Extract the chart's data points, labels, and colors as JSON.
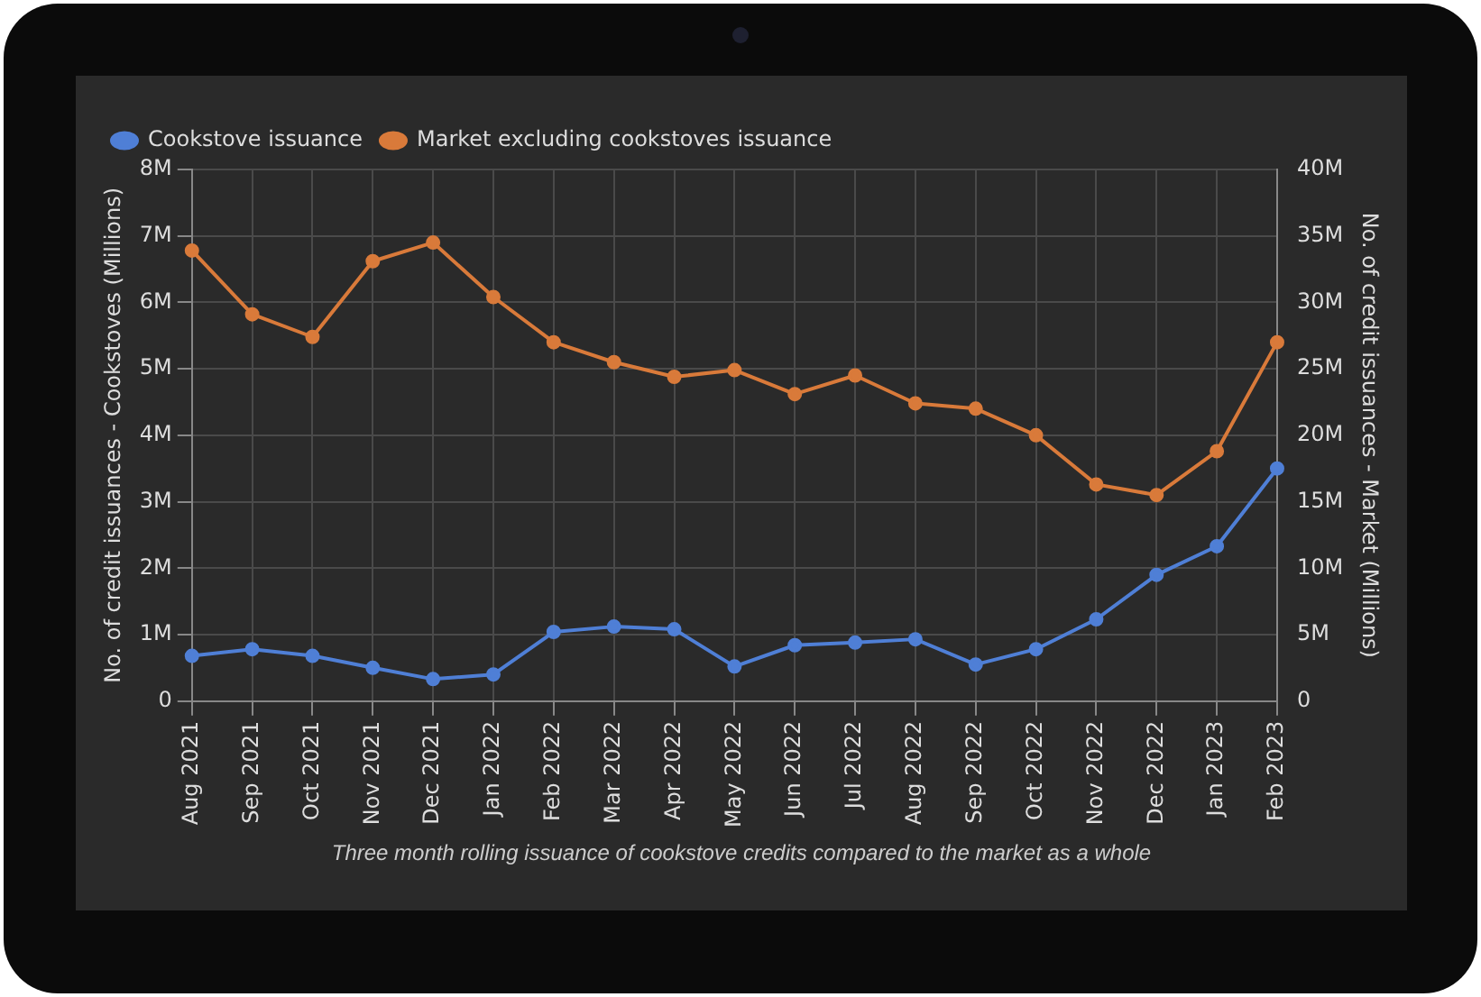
{
  "chart_data": {
    "type": "line",
    "categories": [
      "Aug 2021",
      "Sep 2021",
      "Oct 2021",
      "Nov 2021",
      "Dec 2021",
      "Jan 2022",
      "Feb 2022",
      "Mar 2022",
      "Apr 2022",
      "May 2022",
      "Jun 2022",
      "Jul 2022",
      "Aug 2022",
      "Sep 2022",
      "Oct 2022",
      "Nov 2022",
      "Dec 2022",
      "Jan 2023",
      "Feb 2023"
    ],
    "series": [
      {
        "name": "Cookstove issuance",
        "color": "#4f7fd6",
        "values": [
          0.68,
          0.78,
          0.68,
          0.5,
          0.33,
          0.4,
          1.04,
          1.12,
          1.08,
          0.52,
          0.84,
          0.88,
          0.93,
          0.55,
          0.78,
          1.23,
          1.9,
          2.33,
          3.5
        ]
      },
      {
        "name": "Market excluding cookstoves issuance",
        "color": "#d97a3a",
        "axis": "y2",
        "values": [
          33.9,
          29.1,
          27.4,
          33.1,
          34.5,
          30.4,
          27.0,
          25.5,
          24.4,
          24.9,
          23.1,
          24.5,
          22.4,
          22.0,
          20.0,
          16.3,
          15.5,
          18.8,
          27.0
        ]
      }
    ],
    "ylabel": "No. of credit issuances - Cookstoves (Millions)",
    "y2label": "No. of credit issuances - Market (Millions)",
    "ylim": [
      0,
      8
    ],
    "yticks": [
      0,
      {
        "value": 1,
        "label": "1M"
      },
      {
        "value": 2,
        "label": "2M"
      },
      {
        "value": 3,
        "label": "3M"
      },
      {
        "value": 4,
        "label": "4M"
      },
      {
        "value": 5,
        "label": "5M"
      },
      {
        "value": 6,
        "label": "6M"
      },
      {
        "value": 7,
        "label": "7M"
      },
      {
        "value": 8,
        "label": "8M"
      }
    ],
    "y2lim": [
      0,
      40
    ],
    "y2ticks": [
      0,
      {
        "value": 5,
        "label": "5M"
      },
      {
        "value": 10,
        "label": "10M"
      },
      {
        "value": 15,
        "label": "15M"
      },
      {
        "value": 20,
        "label": "20M"
      },
      {
        "value": 25,
        "label": "25M"
      },
      {
        "value": 30,
        "label": "30M"
      },
      {
        "value": 35,
        "label": "35M"
      },
      {
        "value": 40,
        "label": "40M"
      }
    ],
    "annotations": [
      "Three month rolling issuance of cookstove credits compared to the market as a whole"
    ],
    "grid": true,
    "legend": "top left",
    "marker": "circle",
    "line_style": "solid"
  }
}
